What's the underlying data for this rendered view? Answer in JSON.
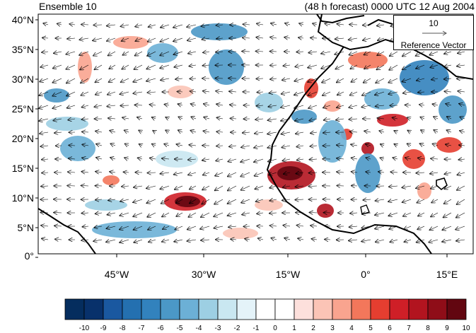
{
  "title_left": "Ensemble 10",
  "title_right": "(48 h forecast) 0000 UTC 12 Aug 2004",
  "map": {
    "lat_labels": [
      "40°N",
      "35°N",
      "30°N",
      "25°N",
      "20°N",
      "15°N",
      "10°N",
      "5°N",
      "0°"
    ],
    "lon_labels": [
      "45°W",
      "30°W",
      "15°W",
      "0°",
      "15°E"
    ],
    "extent": {
      "lon": [
        -55,
        20
      ],
      "lat": [
        0,
        40
      ]
    }
  },
  "reference_vector": {
    "magnitude": "10",
    "label": "Reference Vector"
  },
  "colorbar": {
    "ticks": [
      "-10",
      "-9",
      "-8",
      "-7",
      "-6",
      "-5",
      "-4",
      "-3",
      "-2",
      "-1",
      "0",
      "1",
      "2",
      "3",
      "4",
      "5",
      "6",
      "7",
      "8",
      "9",
      "10"
    ],
    "colors": [
      "#052d5e",
      "#08316b",
      "#1a58a0",
      "#2470b0",
      "#3282bd",
      "#4b98c7",
      "#6cb0d6",
      "#9dcfe3",
      "#c9e7f1",
      "#e4f3f9",
      "#ffffff",
      "#ffffff",
      "#fde0dc",
      "#fbc4b6",
      "#f9a48f",
      "#f3775b",
      "#e53e30",
      "#cf1f27",
      "#b2141f",
      "#8f0d18",
      "#620610"
    ]
  }
}
